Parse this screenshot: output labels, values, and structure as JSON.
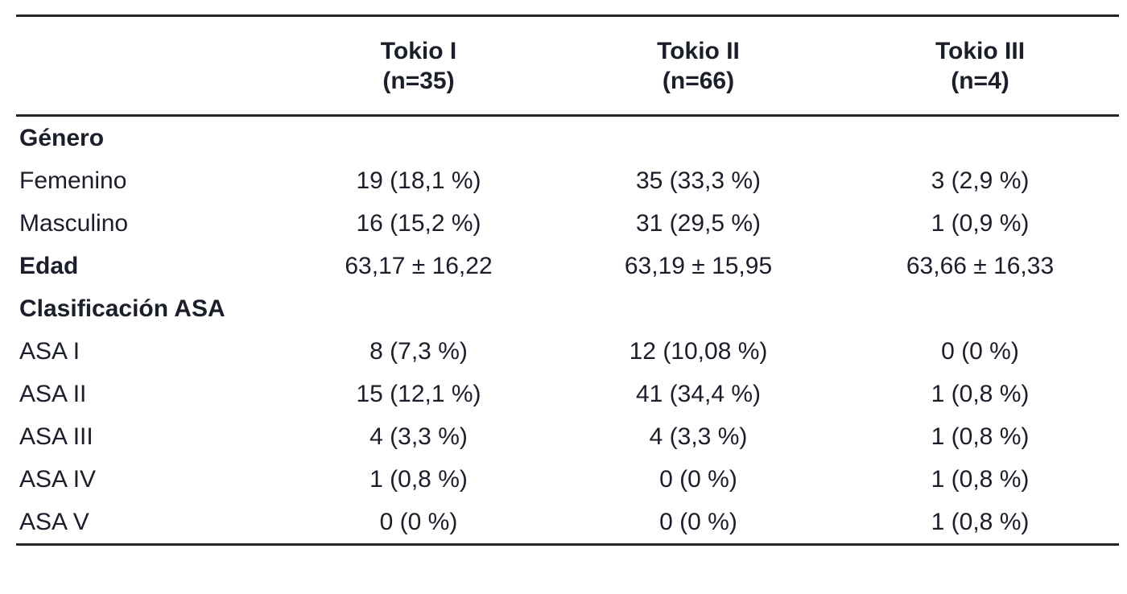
{
  "colors": {
    "text": "#1b1e2b",
    "rule_line": "#262626",
    "background": "#ffffff"
  },
  "table": {
    "columns": [
      {
        "title": "Tokio I",
        "subtitle": "(n=35)"
      },
      {
        "title": "Tokio II",
        "subtitle": "(n=66)"
      },
      {
        "title": "Tokio III",
        "subtitle": "(n=4)"
      }
    ],
    "rows": [
      {
        "label": "Género",
        "bold": true,
        "values": [
          "",
          "",
          ""
        ]
      },
      {
        "label": "Femenino",
        "bold": false,
        "values": [
          "19 (18,1 %)",
          "35 (33,3 %)",
          "3 (2,9 %)"
        ]
      },
      {
        "label": "Masculino",
        "bold": false,
        "values": [
          "16 (15,2 %)",
          "31 (29,5 %)",
          "1 (0,9 %)"
        ]
      },
      {
        "label": "Edad",
        "bold": true,
        "values": [
          "63,17 ± 16,22",
          "63,19 ± 15,95",
          "63,66 ± 16,33"
        ]
      },
      {
        "label": "Clasificación ASA",
        "bold": true,
        "values": [
          "",
          "",
          ""
        ]
      },
      {
        "label": "ASA I",
        "bold": false,
        "values": [
          "8 (7,3 %)",
          "12 (10,08 %)",
          "0 (0 %)"
        ]
      },
      {
        "label": "ASA II",
        "bold": false,
        "values": [
          "15 (12,1 %)",
          "41 (34,4 %)",
          "1 (0,8 %)"
        ]
      },
      {
        "label": "ASA III",
        "bold": false,
        "values": [
          "4 (3,3 %)",
          "4 (3,3 %)",
          "1 (0,8 %)"
        ]
      },
      {
        "label": "ASA IV",
        "bold": false,
        "values": [
          "1 (0,8 %)",
          "0 (0 %)",
          "1 (0,8 %)"
        ]
      },
      {
        "label": "ASA V",
        "bold": false,
        "values": [
          "0 (0 %)",
          "0 (0 %)",
          "1 (0,8 %)"
        ]
      }
    ]
  }
}
